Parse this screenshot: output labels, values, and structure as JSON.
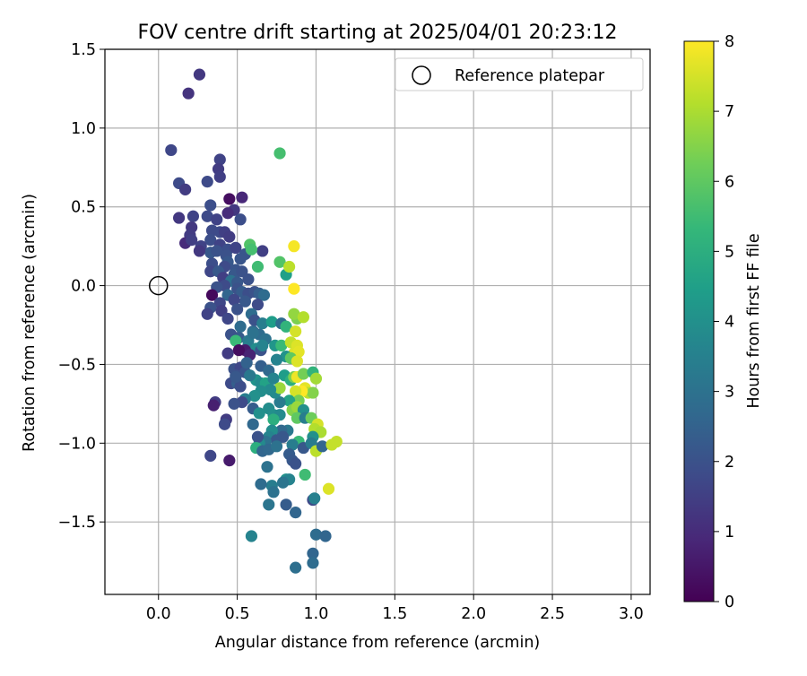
{
  "chart_data": {
    "type": "scatter",
    "title": "FOV centre drift starting at 2025/04/01 20:23:12",
    "xlabel": "Angular distance from reference (arcmin)",
    "ylabel": "Rotation from reference (arcmin)",
    "xlim": [
      -0.34,
      3.12
    ],
    "ylim": [
      -1.96,
      1.5
    ],
    "x_ticks": [
      0.0,
      0.5,
      1.0,
      1.5,
      2.0,
      2.5,
      3.0
    ],
    "x_tick_labels": [
      "0.0",
      "0.5",
      "1.0",
      "1.5",
      "2.0",
      "2.5",
      "3.0"
    ],
    "y_ticks": [
      -1.5,
      -1.0,
      -0.5,
      0.0,
      0.5,
      1.0,
      1.5
    ],
    "y_tick_labels": [
      "−1.5",
      "−1.0",
      "−0.5",
      "0.0",
      "0.5",
      "1.0",
      "1.5"
    ],
    "grid": true,
    "legend": {
      "placement": "top-right",
      "label": "Reference platepar"
    },
    "reference_point": {
      "x": 0.0,
      "y": 0.0
    },
    "colorbar": {
      "label": "Hours from first FF file",
      "range": [
        0,
        8
      ],
      "ticks": [
        0,
        1,
        2,
        3,
        4,
        5,
        6,
        7,
        8
      ],
      "tick_labels": [
        "0",
        "1",
        "2",
        "3",
        "4",
        "5",
        "6",
        "7",
        "8"
      ],
      "colormap": "viridis"
    },
    "points": [
      [
        0.26,
        1.34,
        1.3
      ],
      [
        0.19,
        1.22,
        1.2
      ],
      [
        0.08,
        0.86,
        1.7
      ],
      [
        0.39,
        0.8,
        1.6
      ],
      [
        0.38,
        0.74,
        1.4
      ],
      [
        0.39,
        0.69,
        1.5
      ],
      [
        0.13,
        0.65,
        1.8
      ],
      [
        0.17,
        0.61,
        1.4
      ],
      [
        0.31,
        0.66,
        1.8
      ],
      [
        0.45,
        0.55,
        0.3
      ],
      [
        0.53,
        0.56,
        0.9
      ],
      [
        0.33,
        0.51,
        1.9
      ],
      [
        0.48,
        0.48,
        1.3
      ],
      [
        0.44,
        0.46,
        1.0
      ],
      [
        0.22,
        0.44,
        1.6
      ],
      [
        0.31,
        0.44,
        1.8
      ],
      [
        0.13,
        0.43,
        1.3
      ],
      [
        0.37,
        0.42,
        1.6
      ],
      [
        0.52,
        0.42,
        1.9
      ],
      [
        0.21,
        0.37,
        1.3
      ],
      [
        0.34,
        0.35,
        1.8
      ],
      [
        0.39,
        0.34,
        1.8
      ],
      [
        0.42,
        0.34,
        1.5
      ],
      [
        0.2,
        0.32,
        1.4
      ],
      [
        0.45,
        0.31,
        1.4
      ],
      [
        0.33,
        0.29,
        1.9
      ],
      [
        0.17,
        0.27,
        1.0
      ],
      [
        0.21,
        0.29,
        1.5
      ],
      [
        0.27,
        0.25,
        1.6
      ],
      [
        0.39,
        0.26,
        1.6
      ],
      [
        0.44,
        0.23,
        1.9
      ],
      [
        0.49,
        0.24,
        1.6
      ],
      [
        0.55,
        0.2,
        2.1
      ],
      [
        0.33,
        0.21,
        2.2
      ],
      [
        0.37,
        0.22,
        2.0
      ],
      [
        0.26,
        0.22,
        1.3
      ],
      [
        0.43,
        0.19,
        2.0
      ],
      [
        0.52,
        0.17,
        2.1
      ],
      [
        0.34,
        0.14,
        1.9
      ],
      [
        0.44,
        0.15,
        2.2
      ],
      [
        0.42,
        0.12,
        1.8
      ],
      [
        0.49,
        0.1,
        2.1
      ],
      [
        0.33,
        0.09,
        1.7
      ],
      [
        0.38,
        0.09,
        2.2
      ],
      [
        0.48,
        0.07,
        2.2
      ],
      [
        0.53,
        0.09,
        2.0
      ],
      [
        0.41,
        0.05,
        1.5
      ],
      [
        0.46,
        0.03,
        3.0
      ],
      [
        0.5,
        0.02,
        2.2
      ],
      [
        0.57,
        0.04,
        2.0
      ],
      [
        0.42,
        0.0,
        1.8
      ],
      [
        0.5,
        -0.02,
        2.0
      ],
      [
        0.53,
        -0.04,
        2.3
      ],
      [
        0.37,
        -0.01,
        2.0
      ],
      [
        0.34,
        -0.06,
        0.2
      ],
      [
        0.44,
        -0.06,
        2.6
      ],
      [
        0.57,
        -0.05,
        1.9
      ],
      [
        0.61,
        -0.04,
        2.0
      ],
      [
        0.64,
        -0.05,
        2.4
      ],
      [
        0.67,
        -0.06,
        2.8
      ],
      [
        0.55,
        -0.1,
        2.2
      ],
      [
        0.63,
        -0.12,
        1.8
      ],
      [
        0.48,
        -0.09,
        1.7
      ],
      [
        0.39,
        -0.11,
        1.7
      ],
      [
        0.33,
        -0.14,
        2.0
      ],
      [
        0.31,
        -0.18,
        1.6
      ],
      [
        0.4,
        -0.16,
        1.5
      ],
      [
        0.5,
        -0.15,
        2.0
      ],
      [
        0.59,
        -0.18,
        2.8
      ],
      [
        0.44,
        -0.21,
        1.7
      ],
      [
        0.61,
        -0.22,
        2.0
      ],
      [
        0.52,
        -0.26,
        2.8
      ],
      [
        0.66,
        -0.24,
        3.4
      ],
      [
        0.72,
        -0.23,
        4.4
      ],
      [
        0.78,
        -0.24,
        2.8
      ],
      [
        0.81,
        -0.26,
        5.2
      ],
      [
        0.88,
        -0.21,
        6.4
      ],
      [
        0.86,
        -0.18,
        6.7
      ],
      [
        0.92,
        -0.2,
        7.1
      ],
      [
        0.87,
        -0.29,
        7.5
      ],
      [
        0.64,
        -0.31,
        2.8
      ],
      [
        0.68,
        -0.34,
        3.0
      ],
      [
        0.51,
        -0.33,
        2.3
      ],
      [
        0.46,
        -0.31,
        2.0
      ],
      [
        0.49,
        -0.35,
        5.4
      ],
      [
        0.57,
        -0.35,
        3.2
      ],
      [
        0.57,
        -0.38,
        3.4
      ],
      [
        0.62,
        -0.4,
        3.9
      ],
      [
        0.55,
        -0.41,
        0.6
      ],
      [
        0.51,
        -0.41,
        0.3
      ],
      [
        0.58,
        -0.44,
        0.8
      ],
      [
        0.44,
        -0.43,
        1.4
      ],
      [
        0.65,
        -0.41,
        2.0
      ],
      [
        0.66,
        -0.38,
        3.6
      ],
      [
        0.74,
        -0.38,
        4.2
      ],
      [
        0.78,
        -0.38,
        5.4
      ],
      [
        0.84,
        -0.36,
        7.3
      ],
      [
        0.88,
        -0.38,
        7.6
      ],
      [
        0.86,
        -0.43,
        7.6
      ],
      [
        0.89,
        -0.42,
        7.7
      ],
      [
        0.81,
        -0.45,
        4.1
      ],
      [
        0.84,
        -0.46,
        6.0
      ],
      [
        0.88,
        -0.48,
        7.6
      ],
      [
        0.75,
        -0.47,
        3.6
      ],
      [
        0.65,
        -0.51,
        2.4
      ],
      [
        0.7,
        -0.54,
        2.7
      ],
      [
        0.48,
        -0.53,
        2.0
      ],
      [
        0.52,
        -0.52,
        1.7
      ],
      [
        0.55,
        -0.55,
        2.1
      ],
      [
        0.49,
        -0.57,
        2.0
      ],
      [
        0.46,
        -0.62,
        1.8
      ],
      [
        0.5,
        -0.62,
        2.4
      ],
      [
        0.62,
        -0.6,
        4.1
      ],
      [
        0.65,
        -0.62,
        3.8
      ],
      [
        0.68,
        -0.62,
        4.6
      ],
      [
        0.73,
        -0.59,
        3.6
      ],
      [
        0.8,
        -0.57,
        4.4
      ],
      [
        0.84,
        -0.6,
        5.0
      ],
      [
        0.86,
        -0.58,
        6.4
      ],
      [
        0.88,
        -0.58,
        7.8
      ],
      [
        0.92,
        -0.56,
        6.3
      ],
      [
        0.98,
        -0.55,
        5.2
      ],
      [
        1.0,
        -0.59,
        6.9
      ],
      [
        0.93,
        -0.65,
        7.7
      ],
      [
        0.95,
        -0.68,
        7.2
      ],
      [
        0.98,
        -0.68,
        6.5
      ],
      [
        0.91,
        -0.67,
        8.0
      ],
      [
        0.87,
        -0.67,
        7.5
      ],
      [
        0.89,
        -0.73,
        6.3
      ],
      [
        0.83,
        -0.73,
        4.6
      ],
      [
        0.77,
        -0.74,
        3.3
      ],
      [
        0.74,
        -0.68,
        3.8
      ],
      [
        0.77,
        -0.65,
        6.8
      ],
      [
        0.71,
        -0.66,
        3.8
      ],
      [
        0.65,
        -0.67,
        3.9
      ],
      [
        0.61,
        -0.7,
        4.0
      ],
      [
        0.55,
        -0.72,
        3.4
      ],
      [
        0.53,
        -0.74,
        1.8
      ],
      [
        0.52,
        -0.64,
        1.9
      ],
      [
        0.48,
        -0.75,
        2.0
      ],
      [
        0.36,
        -0.74,
        1.4
      ],
      [
        0.35,
        -0.76,
        0.7
      ],
      [
        0.43,
        -0.85,
        1.4
      ],
      [
        0.42,
        -0.88,
        1.8
      ],
      [
        0.6,
        -0.78,
        2.3
      ],
      [
        0.7,
        -0.78,
        3.9
      ],
      [
        0.64,
        -0.81,
        4.0
      ],
      [
        0.73,
        -0.82,
        4.0
      ],
      [
        0.77,
        -0.82,
        3.8
      ],
      [
        0.73,
        -0.85,
        5.0
      ],
      [
        0.85,
        -0.79,
        6.5
      ],
      [
        0.88,
        -0.77,
        6.8
      ],
      [
        0.92,
        -0.79,
        4.0
      ],
      [
        0.88,
        -0.84,
        6.0
      ],
      [
        0.93,
        -0.84,
        3.4
      ],
      [
        0.97,
        -0.84,
        6.2
      ],
      [
        1.01,
        -0.88,
        7.5
      ],
      [
        0.99,
        -0.91,
        7.1
      ],
      [
        1.03,
        -0.93,
        7.0
      ],
      [
        0.98,
        -0.96,
        4.0
      ],
      [
        0.89,
        -0.99,
        5.4
      ],
      [
        0.82,
        -0.92,
        3.2
      ],
      [
        0.78,
        -0.92,
        2.7
      ],
      [
        0.79,
        -0.96,
        2.2
      ],
      [
        0.72,
        -0.92,
        3.9
      ],
      [
        0.7,
        -0.96,
        3.6
      ],
      [
        0.75,
        -0.98,
        2.2
      ],
      [
        0.68,
        -0.99,
        3.0
      ],
      [
        0.64,
        -1.0,
        3.8
      ],
      [
        0.63,
        -0.96,
        2.0
      ],
      [
        0.6,
        -0.88,
        2.7
      ],
      [
        0.62,
        -1.03,
        5.0
      ],
      [
        0.66,
        -1.05,
        2.6
      ],
      [
        0.7,
        -1.04,
        2.7
      ],
      [
        0.75,
        -1.02,
        3.0
      ],
      [
        0.85,
        -1.01,
        3.4
      ],
      [
        0.92,
        -1.03,
        2.2
      ],
      [
        0.97,
        -1.0,
        3.3
      ],
      [
        1.0,
        -1.05,
        7.2
      ],
      [
        1.04,
        -1.02,
        2.6
      ],
      [
        1.1,
        -1.01,
        7.3
      ],
      [
        1.13,
        -0.99,
        7.3
      ],
      [
        0.83,
        -1.07,
        2.3
      ],
      [
        0.85,
        -1.11,
        2.2
      ],
      [
        0.87,
        -1.13,
        2.0
      ],
      [
        0.69,
        -1.15,
        3.0
      ],
      [
        0.45,
        -1.11,
        0.6
      ],
      [
        0.33,
        -1.08,
        1.7
      ],
      [
        0.93,
        -1.2,
        5.5
      ],
      [
        0.81,
        -1.23,
        4.1
      ],
      [
        0.83,
        -1.23,
        3.6
      ],
      [
        0.79,
        -1.25,
        3.1
      ],
      [
        0.72,
        -1.27,
        3.4
      ],
      [
        0.73,
        -1.31,
        3.0
      ],
      [
        0.65,
        -1.26,
        2.8
      ],
      [
        1.08,
        -1.29,
        7.6
      ],
      [
        0.98,
        -1.36,
        1.8
      ],
      [
        0.99,
        -1.35,
        3.5
      ],
      [
        0.81,
        -1.39,
        2.3
      ],
      [
        0.7,
        -1.39,
        3.1
      ],
      [
        0.87,
        -1.44,
        2.6
      ],
      [
        0.59,
        -1.59,
        3.6
      ],
      [
        1.0,
        -1.58,
        2.8
      ],
      [
        1.06,
        -1.59,
        2.6
      ],
      [
        0.98,
        -1.7,
        2.6
      ],
      [
        0.98,
        -1.76,
        2.8
      ],
      [
        0.87,
        -1.79,
        2.9
      ],
      [
        0.49,
        -0.58,
        2.2
      ],
      [
        0.56,
        -0.49,
        2.5
      ],
      [
        0.6,
        -0.29,
        2.6
      ],
      [
        0.66,
        0.22,
        1.5
      ],
      [
        0.58,
        0.26,
        5.8
      ],
      [
        0.63,
        0.12,
        5.5
      ],
      [
        0.77,
        0.15,
        5.8
      ],
      [
        0.81,
        0.07,
        4.5
      ],
      [
        0.83,
        0.12,
        7.2
      ],
      [
        0.86,
        0.25,
        7.9
      ],
      [
        0.86,
        -0.02,
        8.0
      ],
      [
        0.77,
        0.84,
        5.6
      ],
      [
        0.59,
        0.23,
        5.6
      ],
      [
        0.6,
        -0.3,
        3.0
      ],
      [
        0.58,
        -0.57,
        3.2
      ]
    ]
  }
}
